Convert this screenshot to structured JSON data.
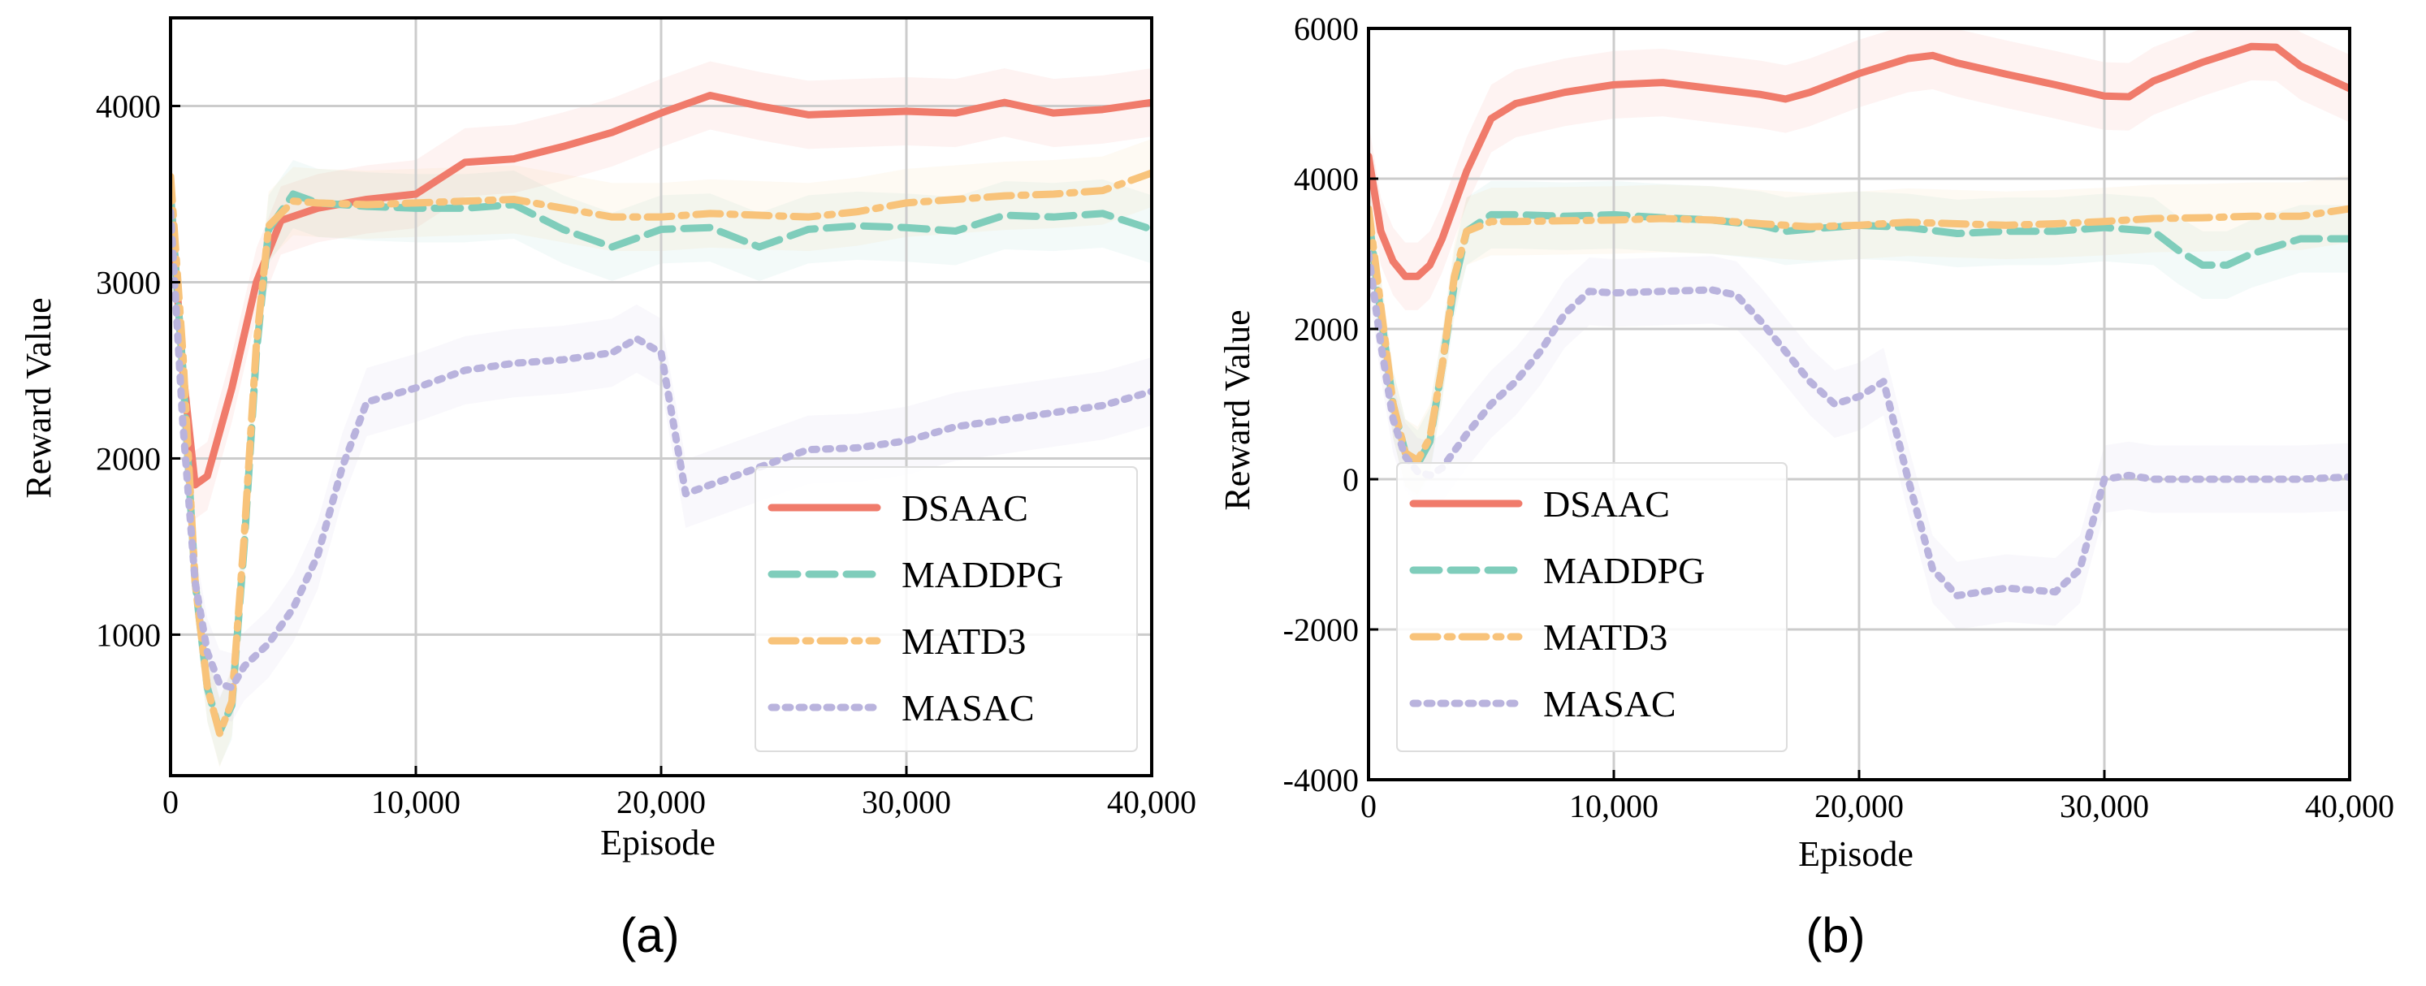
{
  "chart_data": [
    {
      "type": "line",
      "panel_label": "(a)",
      "xlabel": "Episode",
      "ylabel": "Reward Value",
      "xlim": [
        0,
        40000
      ],
      "ylim": [
        200,
        4500
      ],
      "xticks": [
        0,
        10000,
        20000,
        30000,
        40000
      ],
      "xtick_labels": [
        "0",
        "10,000",
        "20,000",
        "30,000",
        "40,000"
      ],
      "yticks": [
        1000,
        2000,
        3000,
        4000
      ],
      "ytick_labels": [
        "1000",
        "2000",
        "3000",
        "4000"
      ],
      "grid": true,
      "legend_position": "lower-right",
      "series": [
        {
          "name": "DSAAC",
          "color": "#f07b6b",
          "style": "solid",
          "x": [
            0,
            500,
            1000,
            1500,
            2500,
            3500,
            4500,
            6000,
            8000,
            10000,
            12000,
            14000,
            16000,
            18000,
            20000,
            22000,
            24000,
            26000,
            28000,
            30000,
            32000,
            34000,
            36000,
            38000,
            40000
          ],
          "y": [
            3500,
            2500,
            1850,
            1900,
            2400,
            3000,
            3350,
            3420,
            3470,
            3500,
            3680,
            3700,
            3770,
            3850,
            3960,
            4060,
            4000,
            3950,
            3960,
            3970,
            3960,
            4020,
            3960,
            3980,
            4020
          ]
        },
        {
          "name": "MADDPG",
          "color": "#7fcdbb",
          "style": "dashed",
          "x": [
            0,
            500,
            1000,
            1500,
            2000,
            2500,
            3000,
            3500,
            4000,
            5000,
            6000,
            8000,
            10000,
            12000,
            14000,
            16000,
            18000,
            20000,
            22000,
            24000,
            26000,
            28000,
            30000,
            32000,
            34000,
            36000,
            38000,
            40000
          ],
          "y": [
            3500,
            2500,
            1300,
            700,
            450,
            600,
            1500,
            2600,
            3300,
            3500,
            3450,
            3430,
            3420,
            3420,
            3440,
            3300,
            3200,
            3300,
            3310,
            3200,
            3300,
            3320,
            3310,
            3290,
            3380,
            3370,
            3390,
            3300
          ]
        },
        {
          "name": "MATD3",
          "color": "#f8c37a",
          "style": "dashdot",
          "x": [
            0,
            500,
            1000,
            1500,
            2000,
            2500,
            3000,
            3500,
            4000,
            5000,
            6000,
            8000,
            10000,
            12000,
            14000,
            16000,
            18000,
            20000,
            22000,
            24000,
            26000,
            28000,
            30000,
            32000,
            34000,
            36000,
            38000,
            40000
          ],
          "y": [
            3600,
            2600,
            1300,
            700,
            440,
            620,
            1550,
            2650,
            3320,
            3460,
            3450,
            3440,
            3450,
            3460,
            3470,
            3420,
            3370,
            3370,
            3390,
            3380,
            3370,
            3400,
            3450,
            3470,
            3490,
            3500,
            3520,
            3620
          ]
        },
        {
          "name": "MASAC",
          "color": "#b9b3dd",
          "style": "dotted",
          "x": [
            0,
            500,
            1000,
            1500,
            2000,
            2500,
            3000,
            4000,
            5000,
            6000,
            7000,
            8000,
            10000,
            12000,
            14000,
            16000,
            18000,
            19000,
            20000,
            21000,
            22000,
            24000,
            26000,
            28000,
            30000,
            32000,
            34000,
            36000,
            38000,
            40000
          ],
          "y": [
            3400,
            2200,
            1300,
            900,
            720,
            700,
            820,
            950,
            1150,
            1450,
            1950,
            2320,
            2400,
            2500,
            2540,
            2560,
            2600,
            2680,
            2600,
            1800,
            1850,
            1950,
            2050,
            2060,
            2100,
            2180,
            2220,
            2260,
            2300,
            2380
          ]
        }
      ]
    },
    {
      "type": "line",
      "panel_label": "(b)",
      "xlabel": "Episode",
      "ylabel": "Reward Value",
      "xlim": [
        0,
        40000
      ],
      "ylim": [
        -4000,
        6000
      ],
      "xticks": [
        0,
        10000,
        20000,
        30000,
        40000
      ],
      "xtick_labels": [
        "0",
        "10,000",
        "20,000",
        "30,000",
        "40,000"
      ],
      "yticks": [
        -4000,
        -2000,
        0,
        2000,
        4000,
        6000
      ],
      "ytick_labels": [
        "-4000",
        "-2000",
        "0",
        "2000",
        "4000",
        "6000"
      ],
      "grid": true,
      "legend_position": "lower-left",
      "series": [
        {
          "name": "DSAAC",
          "color": "#f07b6b",
          "style": "solid",
          "x": [
            0,
            500,
            1000,
            1500,
            2000,
            2500,
            3000,
            4000,
            5000,
            6000,
            8000,
            10000,
            12000,
            14000,
            16000,
            17000,
            18000,
            20000,
            22000,
            23000,
            24000,
            26000,
            28000,
            30000,
            31000,
            32000,
            34000,
            36000,
            37000,
            38000,
            40000
          ],
          "y": [
            4300,
            3300,
            2900,
            2700,
            2700,
            2850,
            3200,
            4100,
            4800,
            5000,
            5150,
            5250,
            5280,
            5200,
            5120,
            5060,
            5150,
            5400,
            5600,
            5640,
            5540,
            5390,
            5250,
            5100,
            5090,
            5300,
            5550,
            5760,
            5750,
            5500,
            5200
          ]
        },
        {
          "name": "MADDPG",
          "color": "#7fcdbb",
          "style": "dashed",
          "x": [
            0,
            500,
            1000,
            1500,
            2000,
            2500,
            3000,
            3500,
            4000,
            5000,
            6000,
            8000,
            10000,
            12000,
            14000,
            16000,
            17000,
            18000,
            20000,
            22000,
            24000,
            26000,
            28000,
            30000,
            32000,
            33000,
            34000,
            35000,
            36000,
            38000,
            40000
          ],
          "y": [
            3500,
            2200,
            1000,
            350,
            200,
            500,
            1500,
            2600,
            3300,
            3520,
            3520,
            3500,
            3520,
            3480,
            3450,
            3380,
            3300,
            3330,
            3380,
            3350,
            3270,
            3300,
            3300,
            3350,
            3300,
            3050,
            2850,
            2850,
            3000,
            3200,
            3200
          ]
        },
        {
          "name": "MATD3",
          "color": "#f8c37a",
          "style": "dashdot",
          "x": [
            0,
            500,
            1000,
            1500,
            2000,
            2500,
            3000,
            3500,
            4000,
            5000,
            6000,
            8000,
            10000,
            12000,
            14000,
            16000,
            18000,
            20000,
            22000,
            24000,
            26000,
            28000,
            30000,
            32000,
            34000,
            36000,
            38000,
            40000
          ],
          "y": [
            3600,
            2300,
            1000,
            350,
            250,
            550,
            1500,
            2700,
            3300,
            3430,
            3430,
            3440,
            3450,
            3470,
            3450,
            3400,
            3360,
            3380,
            3420,
            3400,
            3380,
            3400,
            3430,
            3470,
            3480,
            3500,
            3500,
            3600
          ]
        },
        {
          "name": "MASAC",
          "color": "#b9b3dd",
          "style": "dotted",
          "x": [
            0,
            500,
            1000,
            1500,
            2000,
            2500,
            3000,
            4000,
            5000,
            6000,
            7000,
            8000,
            9000,
            10000,
            12000,
            14000,
            15000,
            16000,
            17000,
            18000,
            19000,
            20000,
            21000,
            22000,
            23000,
            24000,
            26000,
            28000,
            29000,
            30000,
            31000,
            32000,
            34000,
            36000,
            38000,
            40000
          ],
          "y": [
            3000,
            1800,
            800,
            300,
            100,
            50,
            150,
            600,
            1000,
            1300,
            1700,
            2200,
            2500,
            2480,
            2500,
            2520,
            2450,
            2100,
            1700,
            1300,
            1000,
            1100,
            1300,
            0,
            -1200,
            -1550,
            -1450,
            -1500,
            -1200,
            0,
            50,
            0,
            0,
            0,
            0,
            30
          ]
        }
      ]
    }
  ]
}
